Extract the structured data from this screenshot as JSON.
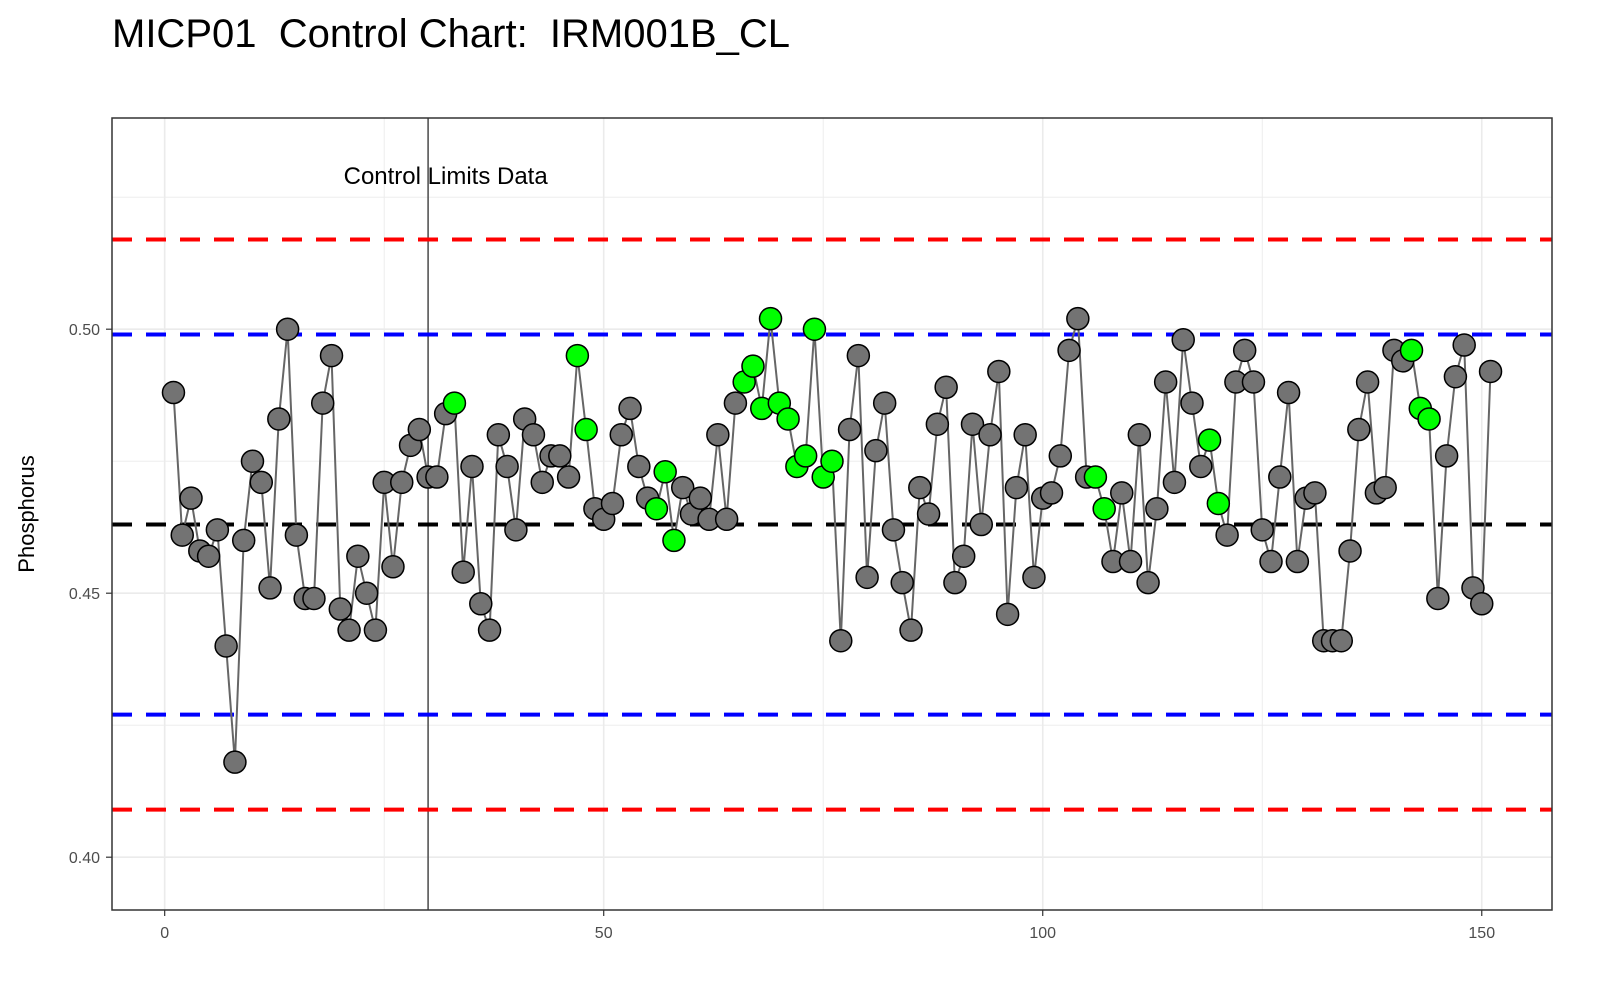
{
  "chart_data": {
    "type": "scatter",
    "title": "MICP01  Control Chart:  IRM001B_CL",
    "xlabel": "",
    "ylabel": "Phosphorus",
    "xlim": [
      -6,
      158
    ],
    "ylim": [
      0.39,
      0.54
    ],
    "x_ticks": [
      0,
      50,
      100,
      150
    ],
    "x_tick_labels": [
      "0",
      "50",
      "100",
      "150"
    ],
    "y_ticks": [
      0.4,
      0.45,
      0.5
    ],
    "y_tick_labels": [
      "0.40",
      "0.45",
      "0.50"
    ],
    "grid": true,
    "annotation": {
      "text": "Control Limits Data",
      "x": 32,
      "y": 0.529
    },
    "vertical_line_x": 30,
    "reference_lines": [
      {
        "kind": "upper-control-limit",
        "value": 0.517,
        "color": "#ff0000",
        "style": "dashed"
      },
      {
        "kind": "upper-warning-limit",
        "value": 0.499,
        "color": "#0000ff",
        "style": "dashed"
      },
      {
        "kind": "center-line",
        "value": 0.463,
        "color": "#000000",
        "style": "dashed"
      },
      {
        "kind": "lower-warning-limit",
        "value": 0.427,
        "color": "#0000ff",
        "style": "dashed"
      },
      {
        "kind": "lower-control-limit",
        "value": 0.409,
        "color": "#ff0000",
        "style": "dashed"
      }
    ],
    "point_colors": {
      "normal": "#737373",
      "flagged": "#00ff00"
    },
    "series": [
      {
        "x": [
          1,
          2,
          3,
          4,
          5,
          6,
          7,
          8,
          9,
          10,
          11,
          12,
          13,
          14,
          15,
          16,
          17,
          18,
          19,
          20,
          21,
          22,
          23,
          24,
          25,
          26,
          27,
          28,
          29,
          30,
          31,
          32,
          33,
          34,
          35,
          36,
          37,
          38,
          39,
          40,
          41,
          42,
          43,
          44,
          45,
          46,
          47,
          48,
          49,
          50,
          51,
          52,
          53,
          54,
          55,
          56,
          57,
          58,
          59,
          60,
          61,
          62,
          63,
          64,
          65,
          66,
          67,
          68,
          69,
          70,
          71,
          72,
          73,
          74,
          75,
          76,
          77,
          78,
          79,
          80,
          81,
          82,
          83,
          84,
          85,
          86,
          87,
          88,
          89,
          90,
          91,
          92,
          93,
          94,
          95,
          96,
          97,
          98,
          99,
          100,
          101,
          102,
          103,
          104,
          105,
          106,
          107,
          108,
          109,
          110,
          111,
          112,
          113,
          114,
          115,
          116,
          117,
          118,
          119,
          120,
          121,
          122,
          123,
          124,
          125,
          126,
          127,
          128,
          129,
          130,
          131,
          132,
          133,
          134,
          135,
          136,
          137,
          138,
          139,
          140,
          141,
          142,
          143,
          144,
          145,
          146,
          147,
          148,
          149,
          150,
          151
        ],
        "y": [
          0.488,
          0.461,
          0.468,
          0.458,
          0.457,
          0.462,
          0.44,
          0.418,
          0.46,
          0.475,
          0.471,
          0.451,
          0.483,
          0.5,
          0.461,
          0.449,
          0.449,
          0.486,
          0.495,
          0.447,
          0.443,
          0.457,
          0.45,
          0.443,
          0.471,
          0.455,
          0.471,
          0.478,
          0.481,
          0.472,
          0.472,
          0.484,
          0.486,
          0.454,
          0.474,
          0.448,
          0.443,
          0.48,
          0.474,
          0.462,
          0.483,
          0.48,
          0.471,
          0.476,
          0.476,
          0.472,
          0.495,
          0.481,
          0.466,
          0.464,
          0.467,
          0.48,
          0.485,
          0.474,
          0.468,
          0.466,
          0.473,
          0.46,
          0.47,
          0.465,
          0.468,
          0.464,
          0.48,
          0.464,
          0.486,
          0.49,
          0.493,
          0.485,
          0.502,
          0.486,
          0.483,
          0.474,
          0.476,
          0.5,
          0.472,
          0.475,
          0.441,
          0.481,
          0.495,
          0.453,
          0.477,
          0.486,
          0.462,
          0.452,
          0.443,
          0.47,
          0.465,
          0.482,
          0.489,
          0.452,
          0.457,
          0.482,
          0.463,
          0.48,
          0.492,
          0.446,
          0.47,
          0.48,
          0.453,
          0.468,
          0.469,
          0.476,
          0.496,
          0.502,
          0.472,
          0.472,
          0.466,
          0.456,
          0.469,
          0.456,
          0.48,
          0.452,
          0.466,
          0.49,
          0.471,
          0.498,
          0.486,
          0.474,
          0.479,
          0.467,
          0.461,
          0.49,
          0.496,
          0.49,
          0.462,
          0.456,
          0.472,
          0.488,
          0.456,
          0.468,
          0.469,
          0.441,
          0.441,
          0.441,
          0.458,
          0.481,
          0.49,
          0.469,
          0.47,
          0.496,
          0.494,
          0.496,
          0.485,
          0.483,
          0.449,
          0.476,
          0.491,
          0.497,
          0.451,
          0.448,
          0.492
        ],
        "flagged": [
          0,
          0,
          0,
          0,
          0,
          0,
          0,
          0,
          0,
          0,
          0,
          0,
          0,
          0,
          0,
          0,
          0,
          0,
          0,
          0,
          0,
          0,
          0,
          0,
          0,
          0,
          0,
          0,
          0,
          0,
          0,
          0,
          1,
          0,
          0,
          0,
          0,
          0,
          0,
          0,
          0,
          0,
          0,
          0,
          0,
          0,
          1,
          1,
          0,
          0,
          0,
          0,
          0,
          0,
          0,
          1,
          1,
          1,
          0,
          0,
          0,
          0,
          0,
          0,
          0,
          1,
          1,
          1,
          1,
          1,
          1,
          1,
          1,
          1,
          1,
          1,
          0,
          0,
          0,
          0,
          0,
          0,
          0,
          0,
          0,
          0,
          0,
          0,
          0,
          0,
          0,
          0,
          0,
          0,
          0,
          0,
          0,
          0,
          0,
          0,
          0,
          0,
          0,
          0,
          0,
          1,
          1,
          0,
          0,
          0,
          0,
          0,
          0,
          0,
          0,
          0,
          0,
          0,
          1,
          1,
          0,
          0,
          0,
          0,
          0,
          0,
          0,
          0,
          0,
          0,
          0,
          0,
          0,
          0,
          0,
          0,
          0,
          0,
          0,
          0,
          0,
          1,
          1,
          1,
          0,
          0,
          0,
          0,
          0,
          0,
          0
        ]
      }
    ]
  }
}
